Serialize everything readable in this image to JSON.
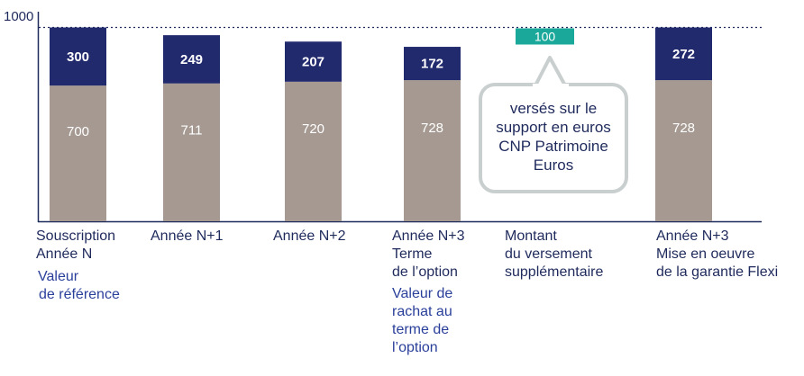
{
  "chart_data": {
    "type": "bar",
    "stacked": true,
    "ylim": [
      0,
      1000
    ],
    "y_ticks": [
      "1000"
    ],
    "categories": [
      [
        "Souscription",
        "Année N"
      ],
      [
        "Année N+1"
      ],
      [
        "Année N+2"
      ],
      [
        "Année N+3",
        "Terme",
        "de l’option"
      ],
      [
        "Montant",
        "du versement",
        "supplémentaire"
      ],
      [
        "Année N+3",
        "Mise en oeuvre",
        "de la garantie Flexi"
      ]
    ],
    "sub_labels": [
      [
        "Valeur",
        "de référence"
      ],
      [],
      [],
      [
        "Valeur de",
        "rachat au",
        "terme de",
        "l’option"
      ],
      [],
      []
    ],
    "series": [
      {
        "values": [
          700,
          711,
          720,
          728,
          null,
          728
        ],
        "color": "#a59991",
        "labels": [
          "700",
          "711",
          "720",
          "728",
          "",
          "728"
        ]
      },
      {
        "values": [
          300,
          249,
          207,
          172,
          null,
          272
        ],
        "color": "#222a6e",
        "labels": [
          "300",
          "249",
          "207",
          "172",
          "",
          "272"
        ]
      }
    ],
    "extra_bar": {
      "category_index": 4,
      "value": 100,
      "label": "100",
      "color": "#1aa89a"
    },
    "reference_line": {
      "value": 1000,
      "style": "dotted"
    },
    "annotation": {
      "lines": [
        "versés sur le",
        "support en euros",
        "CNP Patrimoine",
        "Euros"
      ]
    }
  }
}
